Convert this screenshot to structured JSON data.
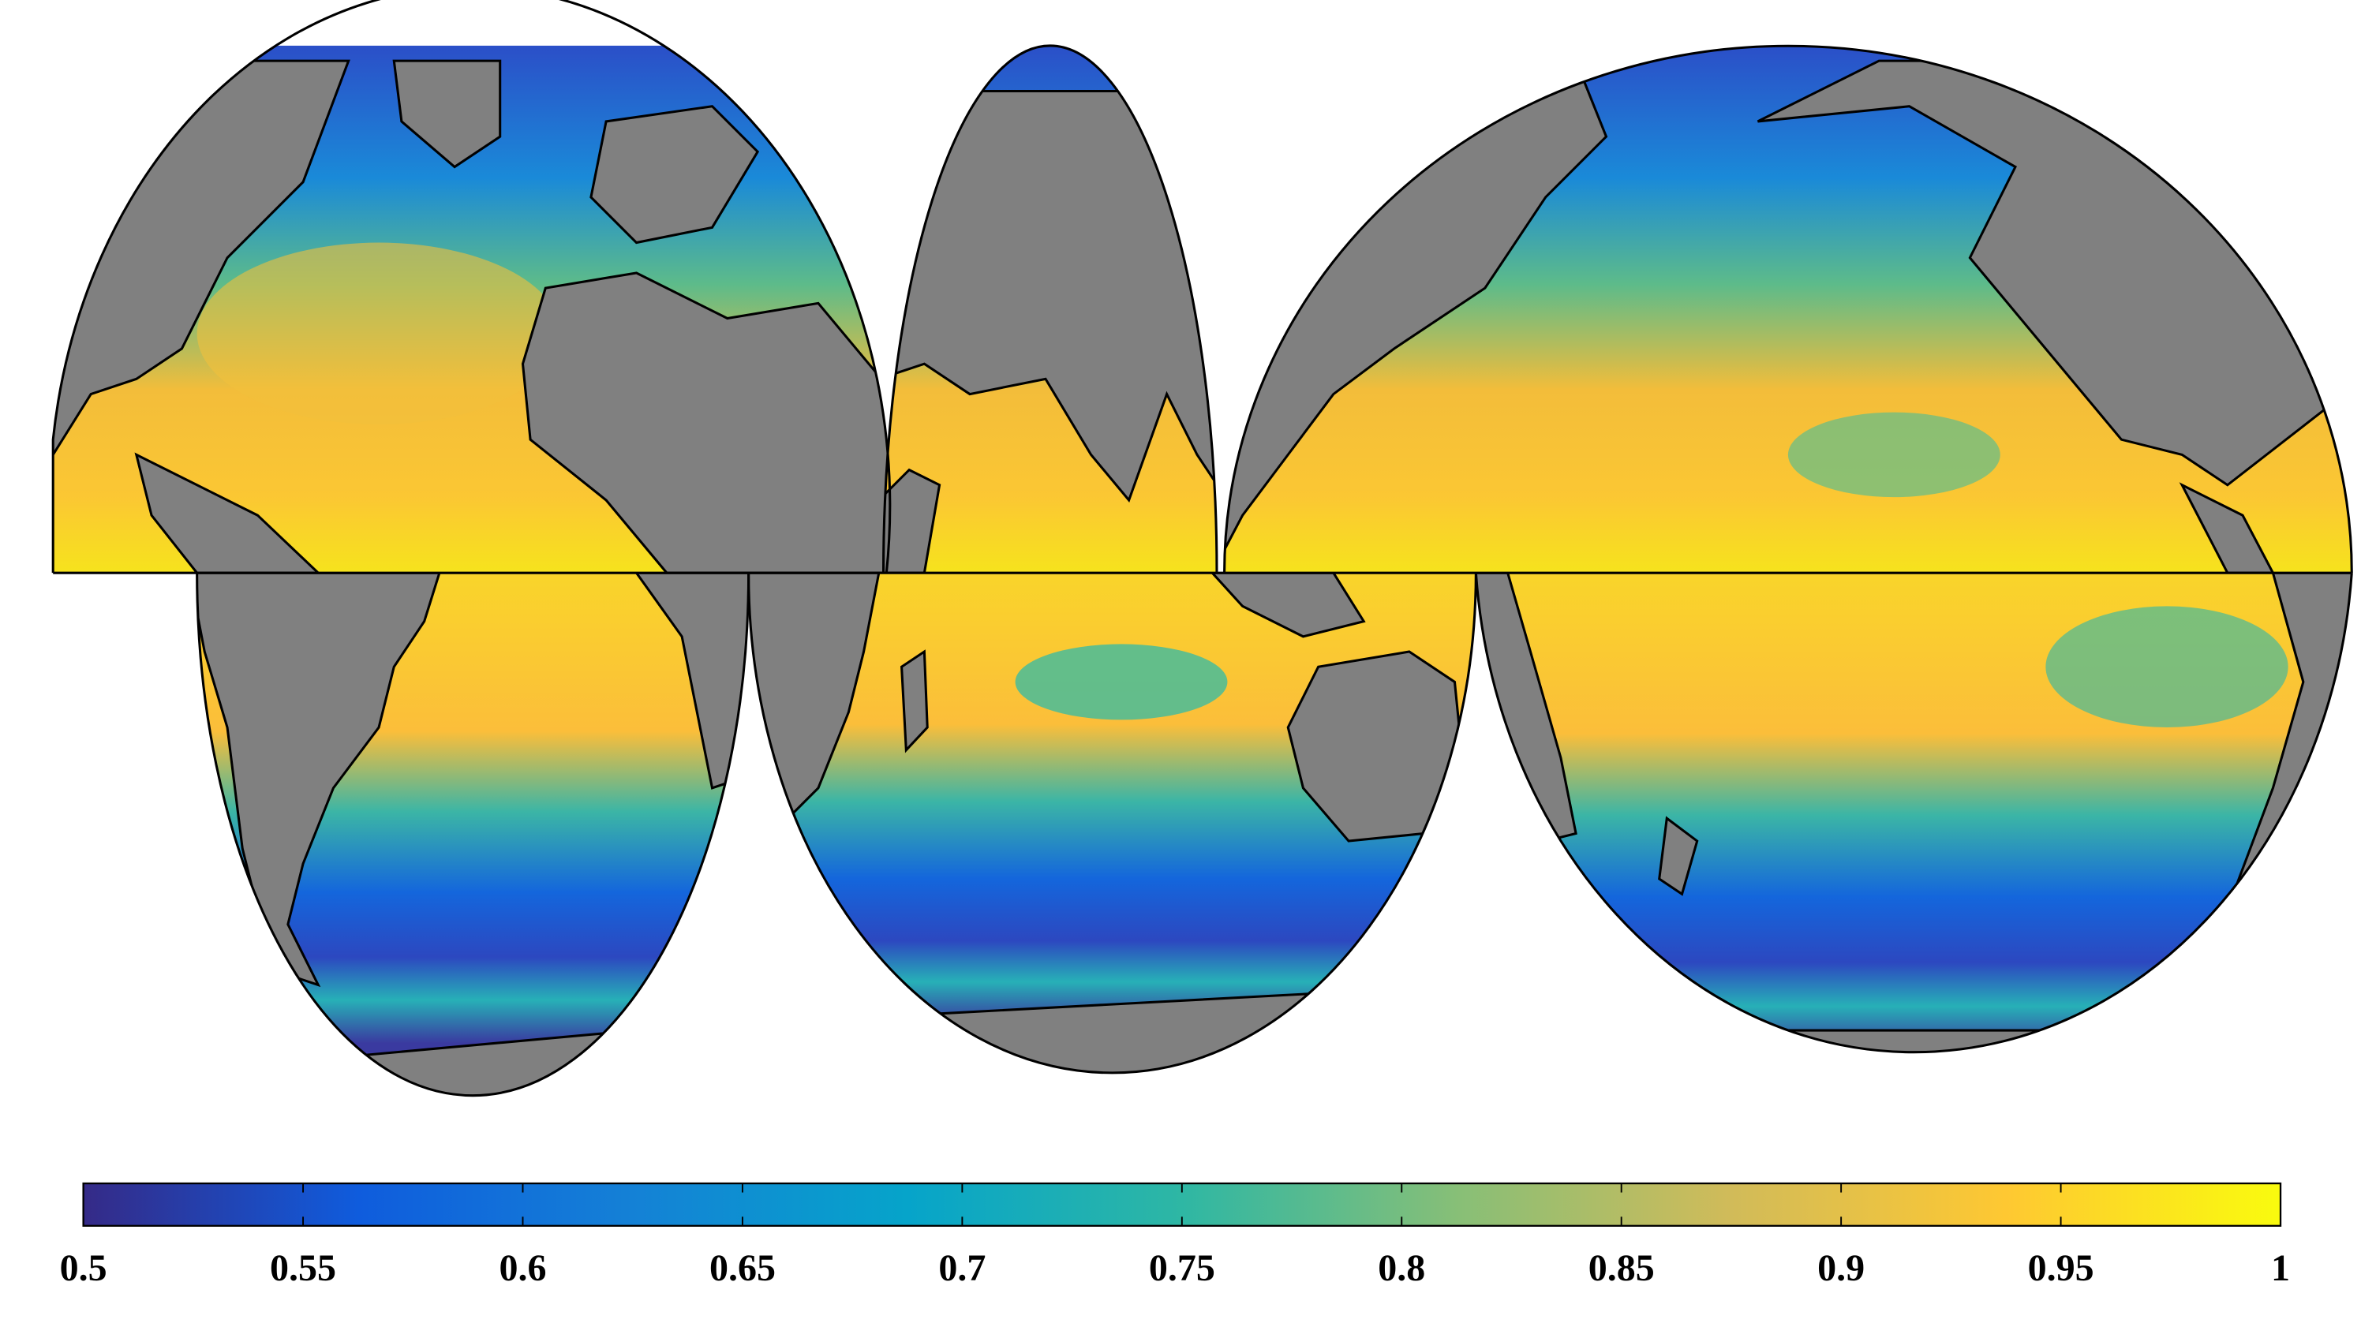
{
  "colorbar": {
    "lim": [
      0.5,
      1
    ],
    "ticks": [
      0.5,
      0.55,
      0.6,
      0.65,
      0.7,
      0.75,
      0.8,
      0.85,
      0.9,
      0.95,
      1
    ],
    "colormap": [
      "#352a87",
      "#0f5cdd",
      "#1481d6",
      "#06a4ca",
      "#2eb7a4",
      "#87bf77",
      "#d1bb59",
      "#fec832",
      "#f9fb0e"
    ]
  }
}
